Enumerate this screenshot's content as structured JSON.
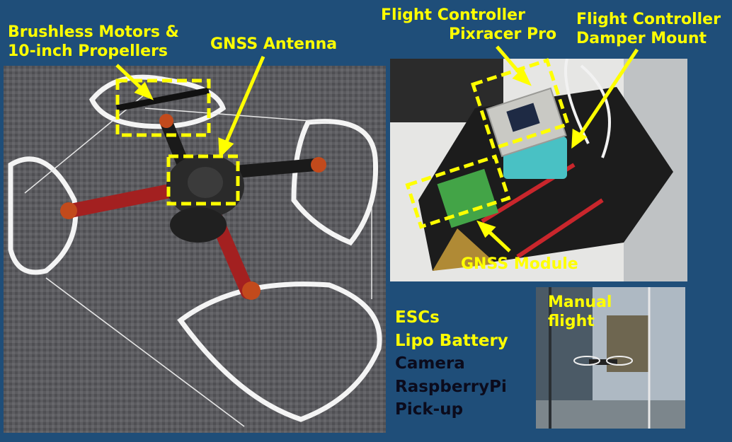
{
  "labels": {
    "brushless_line1": "Brushless Motors &",
    "brushless_line2": "10-inch Propellers",
    "gnss_antenna": "GNSS Antenna",
    "fc_line1": "Flight Controller",
    "fc_line2": "Pixracer Pro",
    "damper_line1": "Flight Controller",
    "damper_line2": "Damper Mount",
    "gnss_module": "GNSS Module",
    "manual_line1": "Manual",
    "manual_line2": "flight"
  },
  "components_list": [
    {
      "text": "ESCs",
      "highlighted": true
    },
    {
      "text": "Lipo Battery",
      "highlighted": true
    },
    {
      "text": "Camera",
      "highlighted": false
    },
    {
      "text": "RaspberryPi",
      "highlighted": false
    },
    {
      "text": "Pick-up",
      "highlighted": false
    }
  ],
  "colors": {
    "background": "#1f4e79",
    "highlight": "#ffff00",
    "muted_text": "#0b0b1c"
  }
}
